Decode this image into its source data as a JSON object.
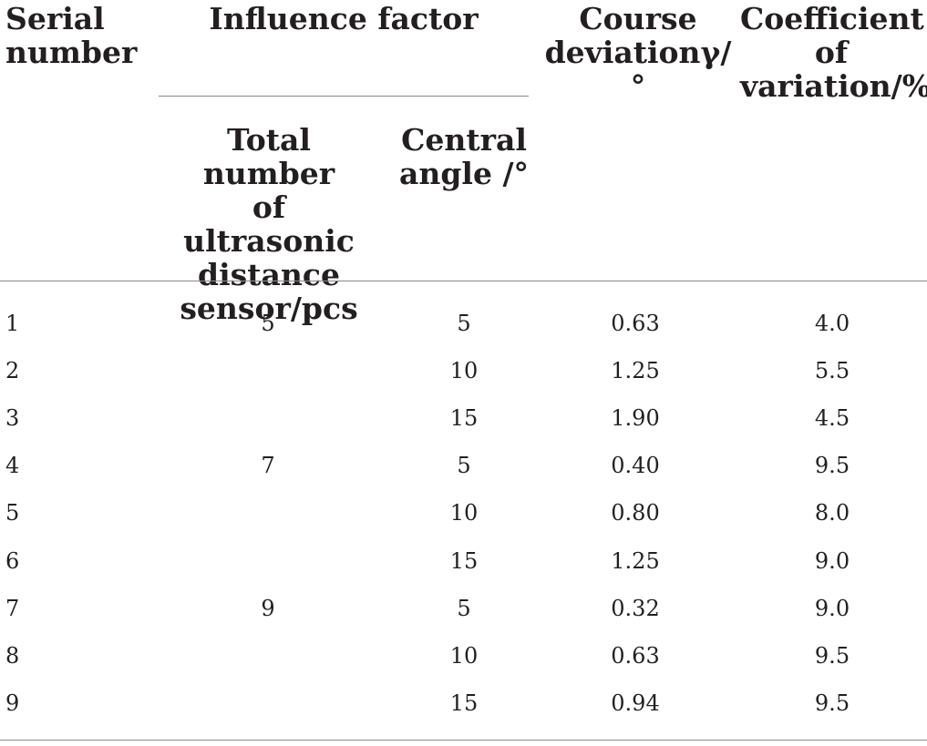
{
  "table": {
    "headers": {
      "serial": "Serial\nnumber",
      "influence": "Influence factor",
      "sensors": "Total number\nof ultrasonic\ndistance\nsensor/pcs",
      "angle": "Central\nangle /°",
      "deviation": "Course\ndeviationγ/°",
      "variation": "Coefficient\nof\nvariation/%"
    },
    "rows": [
      {
        "serial": "1",
        "sensors": "5",
        "angle": "5",
        "deviation": "0.63",
        "variation": "4.0"
      },
      {
        "serial": "2",
        "sensors": "",
        "angle": "10",
        "deviation": "1.25",
        "variation": "5.5"
      },
      {
        "serial": "3",
        "sensors": "",
        "angle": "15",
        "deviation": "1.90",
        "variation": "4.5"
      },
      {
        "serial": "4",
        "sensors": "7",
        "angle": "5",
        "deviation": "0.40",
        "variation": "9.5"
      },
      {
        "serial": "5",
        "sensors": "",
        "angle": "10",
        "deviation": "0.80",
        "variation": "8.0"
      },
      {
        "serial": "6",
        "sensors": "",
        "angle": "15",
        "deviation": "1.25",
        "variation": "9.0"
      },
      {
        "serial": "7",
        "sensors": "9",
        "angle": "5",
        "deviation": "0.32",
        "variation": "9.0"
      },
      {
        "serial": "8",
        "sensors": "",
        "angle": "10",
        "deviation": "0.63",
        "variation": "9.5"
      },
      {
        "serial": "9",
        "sensors": "",
        "angle": "15",
        "deviation": "0.94",
        "variation": "9.5"
      }
    ]
  }
}
